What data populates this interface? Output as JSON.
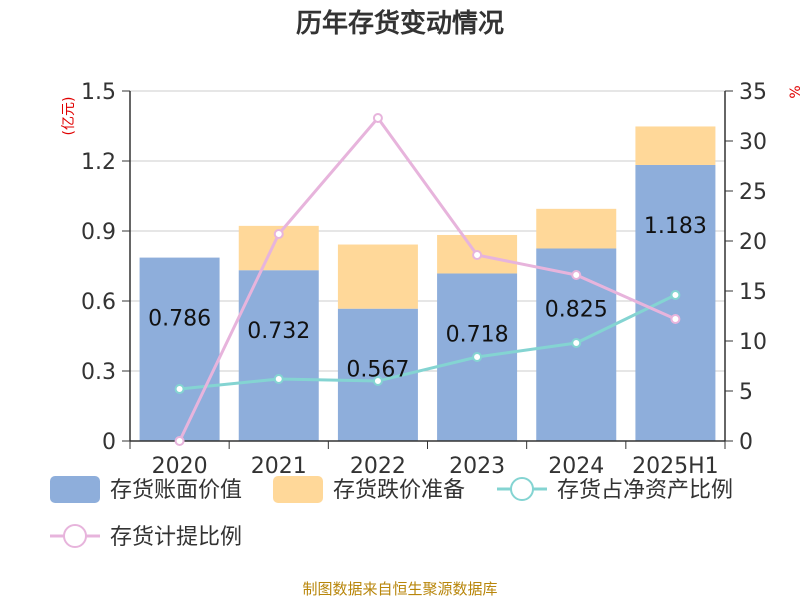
{
  "colors": {
    "book_value": "#8eaedb",
    "impairment": "#ffd899",
    "ratio_net_assets": "#84d4d2",
    "provision_ratio": "#e7b4dc",
    "grid": "#cccccc",
    "axis": "#333333",
    "unit_label": "#e00000",
    "source": "#b8860b"
  },
  "chart_data": {
    "type": "bar",
    "title": "历年存货变动情况",
    "ylabel_left": "(亿元)",
    "ylabel_right": "%",
    "categories": [
      "2020",
      "2021",
      "2022",
      "2023",
      "2024",
      "2025H1"
    ],
    "ylim_left": [
      0,
      1.5
    ],
    "yticks_left": [
      "0",
      "0.3",
      "0.6",
      "0.9",
      "1.2",
      "1.5"
    ],
    "ylim_right": [
      0,
      35
    ],
    "yticks_right": [
      "0",
      "5",
      "10",
      "15",
      "20",
      "25",
      "30",
      "35"
    ],
    "grid": true,
    "legend_position": "bottom",
    "series": [
      {
        "name": "存货账面价值",
        "kind": "bar",
        "stack": "a",
        "axis": "left",
        "values": [
          0.786,
          0.732,
          0.567,
          0.718,
          0.825,
          1.183
        ],
        "labels": [
          "0.786",
          "0.732",
          "0.567",
          "0.718",
          "0.825",
          "1.183"
        ]
      },
      {
        "name": "存货跌价准备",
        "kind": "bar",
        "stack": "a",
        "axis": "left",
        "values": [
          0.0,
          0.19,
          0.275,
          0.165,
          0.17,
          0.165
        ]
      },
      {
        "name": "存货占净资产比例",
        "kind": "line",
        "axis": "right",
        "values": [
          5.2,
          6.2,
          6.0,
          8.4,
          9.8,
          14.6
        ]
      },
      {
        "name": "存货计提比例",
        "kind": "line",
        "axis": "right",
        "values": [
          0.0,
          20.7,
          32.3,
          18.6,
          16.6,
          12.2
        ]
      }
    ]
  },
  "source_text": "制图数据来自恒生聚源数据库"
}
